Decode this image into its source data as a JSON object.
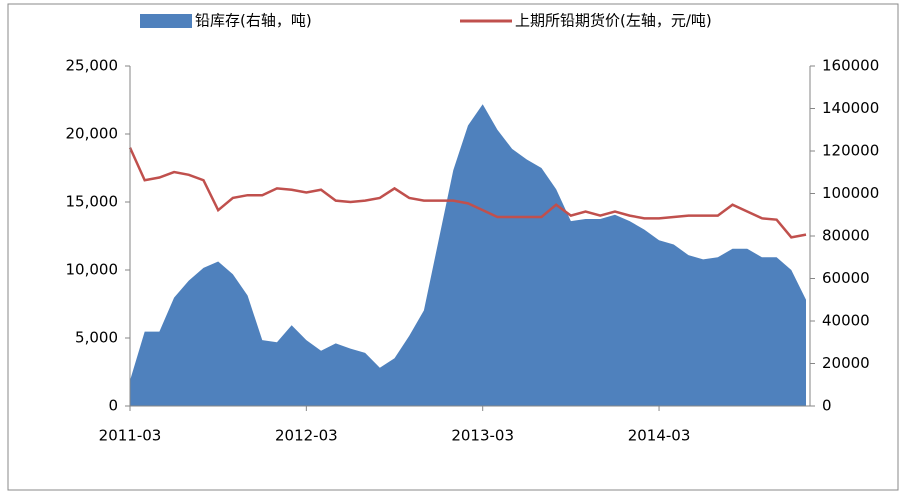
{
  "chart_data": {
    "type": "area-line",
    "categories": [
      "2011-03",
      null,
      null,
      null,
      null,
      null,
      null,
      null,
      null,
      null,
      null,
      null,
      "2012-03",
      null,
      null,
      null,
      null,
      null,
      null,
      null,
      null,
      null,
      null,
      null,
      "2013-03",
      null,
      null,
      null,
      null,
      null,
      null,
      null,
      null,
      null,
      null,
      null,
      "2014-03",
      null,
      null,
      null,
      null,
      null,
      null,
      null,
      null,
      null,
      null
    ],
    "series": [
      {
        "name": "铅库存(右轴，吨)",
        "color": "#4f81bd",
        "axis": "y2",
        "kind": "area",
        "values": [
          12000,
          35000,
          35000,
          51000,
          59000,
          65000,
          68000,
          62000,
          52000,
          31000,
          30000,
          38000,
          31000,
          26000,
          29500,
          27000,
          25000,
          18000,
          22500,
          33000,
          45000,
          78000,
          111000,
          132000,
          142000,
          130000,
          121000,
          116000,
          112000,
          102000,
          87000,
          88000,
          88000,
          90000,
          87000,
          83000,
          78000,
          76000,
          71000,
          69000,
          70000,
          74000,
          74000,
          70000,
          70000,
          64000,
          50000
        ]
      },
      {
        "name": "上期所铅期货价(左轴，元/吨)",
        "color": "#c0504d",
        "axis": "y",
        "kind": "line",
        "values": [
          19000,
          16600,
          16800,
          17200,
          17000,
          16600,
          14400,
          15300,
          15500,
          15500,
          16000,
          15900,
          15700,
          15900,
          15100,
          15000,
          15100,
          15300,
          16000,
          15300,
          15100,
          15100,
          15100,
          14900,
          14400,
          13900,
          13900,
          13900,
          13900,
          14800,
          14000,
          14300,
          14000,
          14300,
          14000,
          13800,
          13800,
          13900,
          14000,
          14000,
          14000,
          14800,
          14300,
          13800,
          13700,
          12400,
          12600
        ]
      }
    ],
    "ylim": [
      0,
      25000
    ],
    "yticks": [
      0,
      {
        "value": 5000,
        "label": "5,000"
      },
      {
        "value": 10000,
        "label": "10,000"
      },
      {
        "value": 15000,
        "label": "15,000"
      },
      {
        "value": 20000,
        "label": "20,000"
      },
      {
        "value": 25000,
        "label": "25,000"
      }
    ],
    "y2lim": [
      0,
      160000
    ],
    "y2ticks": [
      0,
      20000,
      40000,
      60000,
      80000,
      100000,
      120000,
      140000,
      160000
    ],
    "legend": "top"
  }
}
